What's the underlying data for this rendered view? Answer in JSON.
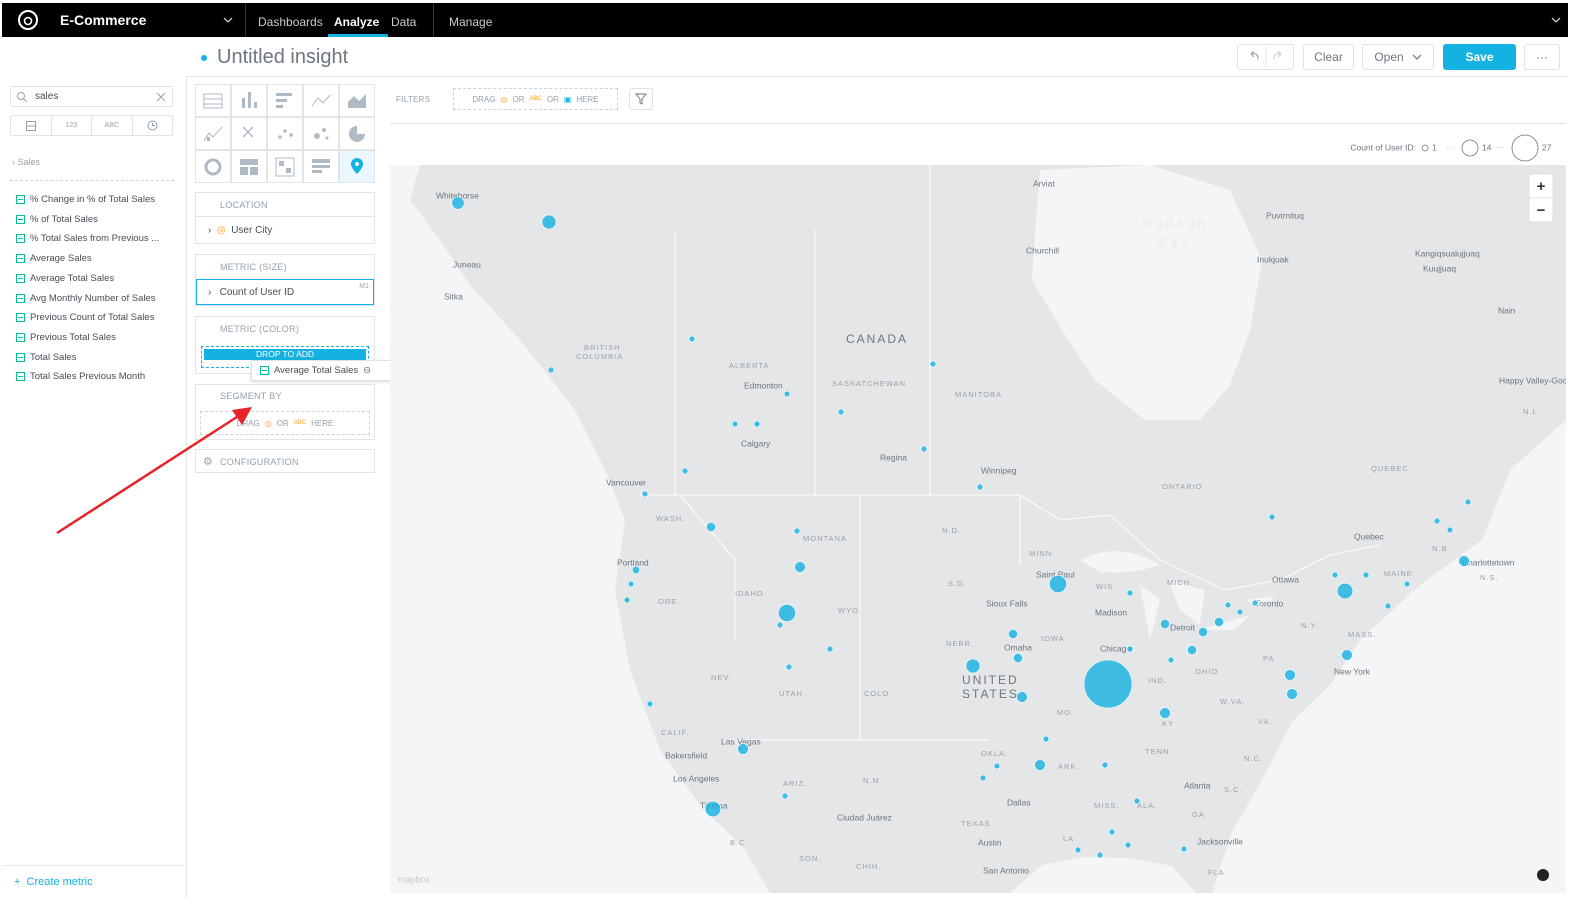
{
  "top_bar": {
    "workspace": "E-Commerce",
    "nav": [
      "Dashboards",
      "Analyze",
      "Data",
      "Manage"
    ]
  },
  "header": {
    "title": "Untitled insight",
    "buttons": [
      "Clear",
      "Open",
      "Save",
      "···"
    ]
  },
  "catalog": {
    "search": "sales",
    "filters": [
      "123",
      "ABC"
    ],
    "section": "Sales",
    "items": [
      "% Change in % of Total Sales",
      "% of Total Sales",
      "% Total Sales from Previous ...",
      "Average Sales",
      "Average Total Sales",
      "Avg Monthly Number of Sales",
      "Previous Count of Total Sales",
      "Previous Total Sales",
      "Total Sales",
      "Total Sales Previous Month"
    ],
    "create": "Create metric"
  },
  "buckets": {
    "location": {
      "title": "LOCATION",
      "item": "User City"
    },
    "size": {
      "title": "METRIC (SIZE)",
      "item": "Count of User ID",
      "tag": "M1"
    },
    "color": {
      "title": "METRIC (COLOR)",
      "drop": "DROP TO ADD",
      "dragging": "Average Total Sales"
    },
    "segment": {
      "title": "SEGMENT BY",
      "hint": [
        "DRAG",
        "OR",
        "ABC",
        "HERE"
      ]
    },
    "configuration": "CONFIGURATION"
  },
  "filters": {
    "title": "FILTERS",
    "hint": [
      "DRAG",
      "OR",
      "ABC",
      "OR",
      "HERE"
    ]
  },
  "map": {
    "legend": {
      "title": "Count of User ID:",
      "values": [
        1,
        14,
        27
      ]
    },
    "zoom": [
      "+",
      "−"
    ],
    "attribution": "mapbox",
    "labels": [
      "Whitehorse",
      "Arviat",
      "Hudson",
      "Bay",
      "Puvirnituq",
      "Churchill",
      "Inukjuak",
      "Kangiqsualujjuaq",
      "Kuujjuaq",
      "Juneau",
      "Sitka",
      "BRITISH",
      "COLUMBIA",
      "CANADA",
      "ALBERTA",
      "Nain",
      "Edmonton",
      "SASKATCHEWAN",
      "MANITOBA",
      "Happy Valley-Goose Bay",
      "N.L.",
      "Calgary",
      "Regina",
      "Winnipeg",
      "QUEBEC",
      "Vancouver",
      "ONTARIO",
      "WASH.",
      "MONTANA",
      "N.D.",
      "Quebec",
      "N.B.",
      "Charlottetown",
      "MINN.",
      "MAINE",
      "N.S.",
      "Portland",
      "Saint Paul",
      "WIS.",
      "Ottawa",
      "MICH.",
      "ORE.",
      "IDAHO",
      "S.D.",
      "Toronto",
      "Sioux Falls",
      "WYO.",
      "Madison",
      "Detroit",
      "N.Y.",
      "MASS.",
      "NEBR.",
      "IOWA",
      "Chicago",
      "Omaha",
      "PA",
      "OHIO",
      "New York",
      "NEV.",
      "UNITED",
      "STATES",
      "UTAH",
      "COLO.",
      "IND.",
      "W.VA.",
      "MO.",
      "VA.",
      "KY",
      "CALIF.",
      "Las Vegas",
      "TENN.",
      "N.C.",
      "OKLA.",
      "Bakersfield",
      "ARK.",
      "Los Angeles",
      "ARIZ.",
      "N.M.",
      "Atlanta",
      "S.C.",
      "Dallas",
      "MISS.",
      "ALA.",
      "GA",
      "Tijuana",
      "Ciudad Juárez",
      "TEXAS",
      "LA",
      "Austin",
      "Jacksonville",
      "B.C.",
      "SON.",
      "CHIH.",
      "San Antonio",
      "FLA."
    ],
    "bubbles": [
      5,
      6,
      1,
      1,
      1,
      1,
      1,
      1,
      1,
      1,
      1,
      1,
      1,
      3,
      1,
      4,
      2,
      1,
      1,
      8,
      1,
      1,
      1,
      8,
      1,
      3,
      3,
      6,
      4,
      27,
      3,
      3,
      3,
      3,
      1,
      1,
      4,
      4,
      4,
      7,
      4,
      4,
      1,
      1,
      1,
      1,
      1,
      1,
      4,
      7,
      4,
      1,
      1,
      1,
      1,
      1,
      1,
      1,
      1,
      1,
      1,
      1,
      1,
      1,
      1,
      1,
      1,
      1
    ]
  }
}
